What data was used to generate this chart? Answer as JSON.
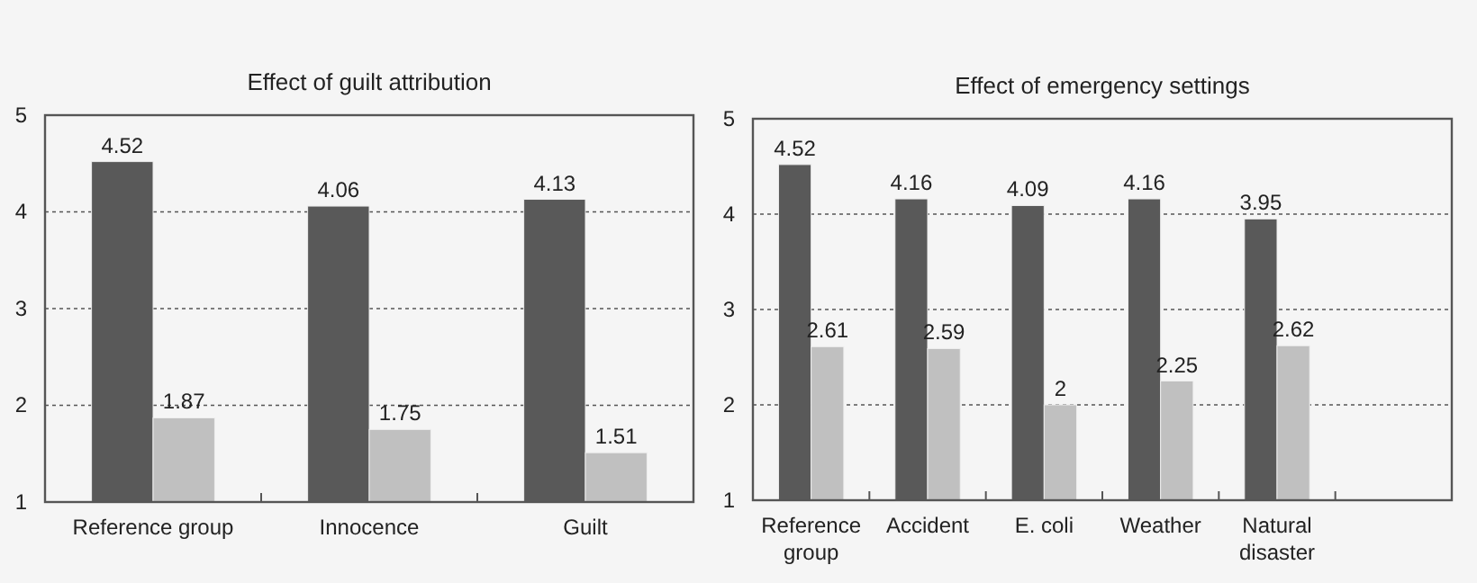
{
  "chart_data": [
    {
      "type": "bar",
      "title": "Effect of guilt attribution",
      "categories": [
        "Reference group",
        "Innocence",
        "Guilt"
      ],
      "series": [
        {
          "color": "#595959",
          "values": [
            4.52,
            4.06,
            4.13
          ]
        },
        {
          "color": "#c0c0c0",
          "values": [
            1.87,
            1.75,
            1.51
          ]
        }
      ],
      "ylim": [
        1,
        5
      ],
      "yticks": [
        1,
        2,
        3,
        4,
        5
      ],
      "grid": "y",
      "data_labels": true
    },
    {
      "type": "bar",
      "title": "Effect of emergency settings",
      "categories": [
        "Reference group",
        "Accident",
        "E. coli",
        "Weather",
        "Natural disaster",
        null
      ],
      "series": [
        {
          "color": "#595959",
          "values": [
            4.52,
            4.16,
            4.09,
            4.16,
            3.95,
            null
          ]
        },
        {
          "color": "#c0c0c0",
          "values": [
            2.61,
            2.59,
            2,
            2.25,
            2.62,
            null
          ]
        }
      ],
      "ylim": [
        1,
        5
      ],
      "yticks": [
        1,
        2,
        3,
        4,
        5
      ],
      "grid": "y",
      "data_labels": true
    }
  ]
}
